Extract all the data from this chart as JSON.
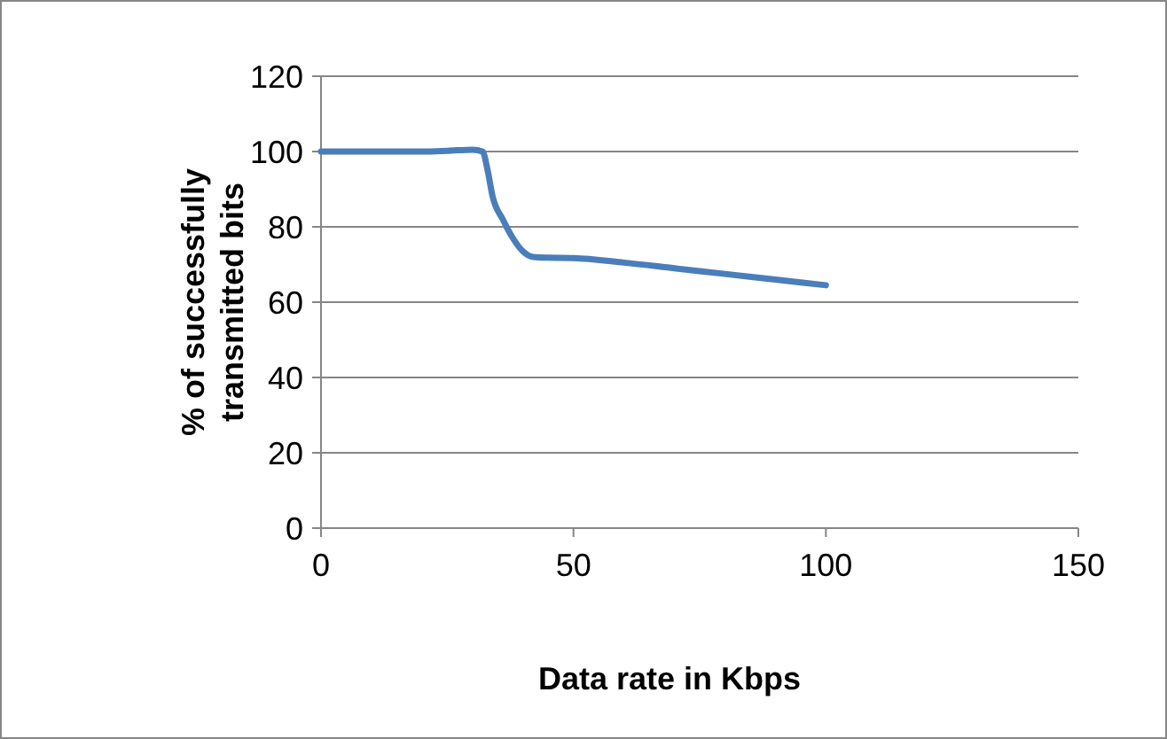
{
  "chart_data": {
    "type": "line",
    "xlabel": "Data rate in Kbps",
    "ylabel": "% of successfully transmitted bits",
    "x": [
      0,
      10,
      20,
      25,
      30,
      32,
      33,
      34,
      36,
      38,
      40,
      42,
      45,
      50,
      60,
      70,
      80,
      90,
      100
    ],
    "series": [
      {
        "color": "#4a7ebb",
        "values": [
          100,
          100,
          100,
          100.2,
          100.5,
          100,
          95,
          88,
          82,
          77,
          73.5,
          72,
          71.8,
          71.7,
          70.5,
          69,
          67.5,
          66,
          64.5
        ]
      }
    ],
    "xlim": [
      0,
      150
    ],
    "xticks": [
      0,
      50,
      100,
      150
    ],
    "ylim": [
      0,
      120
    ],
    "yticks": [
      0,
      20,
      40,
      60,
      80,
      100,
      120
    ],
    "grid": "y",
    "marker": "none",
    "line_style": "solid"
  }
}
